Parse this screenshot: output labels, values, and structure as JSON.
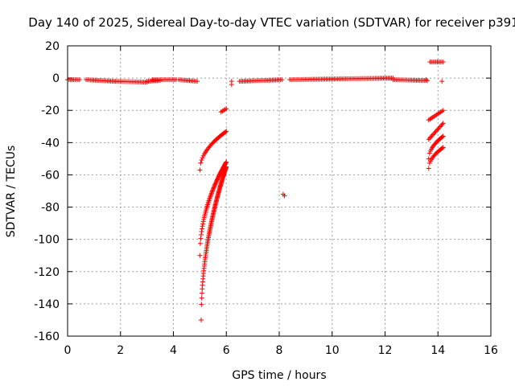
{
  "chart_data": {
    "type": "scatter",
    "title": "Day 140 of 2025, Sidereal Day-to-day VTEC variation (SDTVAR) for receiver p391",
    "xlabel": "GPS time / hours",
    "ylabel": "SDTVAR / TECUs",
    "xlim": [
      0,
      16
    ],
    "ylim": [
      -160,
      20
    ],
    "xticks": [
      0,
      2,
      4,
      6,
      8,
      10,
      12,
      14,
      16
    ],
    "yticks": [
      -160,
      -140,
      -120,
      -100,
      -80,
      -60,
      -40,
      -20,
      0,
      20
    ],
    "grid": true,
    "marker": "plus",
    "color": "#ff0000",
    "series": [
      {
        "name": "SDTVAR",
        "segments": [
          {
            "x0": 0.0,
            "x1": 0.45,
            "y0": -1,
            "y1": -1
          },
          {
            "x0": 0.7,
            "x1": 1.8,
            "y0": -1,
            "y1": -2
          },
          {
            "x0": 1.8,
            "x1": 3.0,
            "y0": -2,
            "y1": -2.5
          },
          {
            "x0": 3.0,
            "x1": 3.5,
            "y0": -2,
            "y1": -1.5
          },
          {
            "x0": 3.2,
            "x1": 4.1,
            "y0": -1,
            "y1": -1
          },
          {
            "x0": 4.2,
            "x1": 4.9,
            "y0": -1,
            "y1": -2
          },
          {
            "x0": 6.5,
            "x1": 8.1,
            "y0": -2,
            "y1": -1
          },
          {
            "x0": 8.4,
            "x1": 12.3,
            "y0": -1,
            "y1": 0
          },
          {
            "x0": 12.3,
            "x1": 13.6,
            "y0": -1,
            "y1": -1.5
          },
          {
            "x0": 13.7,
            "x1": 14.2,
            "y0": 10,
            "y1": 10
          },
          {
            "x0": 5.0,
            "x1": 6.0,
            "y0": -57,
            "y1": -33
          },
          {
            "x0": 5.0,
            "x1": 6.0,
            "y0": -110,
            "y1": -52
          },
          {
            "x0": 5.05,
            "x1": 6.0,
            "y0": -150,
            "y1": -55
          },
          {
            "x0": 5.8,
            "x1": 6.0,
            "y0": -21,
            "y1": -19
          },
          {
            "x0": 13.65,
            "x1": 14.2,
            "y0": -26,
            "y1": -20
          },
          {
            "x0": 13.65,
            "x1": 14.2,
            "y0": -38,
            "y1": -28
          },
          {
            "x0": 13.65,
            "x1": 14.2,
            "y0": -50,
            "y1": -36
          },
          {
            "x0": 13.65,
            "x1": 14.2,
            "y0": -56,
            "y1": -43
          }
        ],
        "points": [
          {
            "x": 6.2,
            "y": -2
          },
          {
            "x": 6.2,
            "y": -4
          },
          {
            "x": 8.15,
            "y": -72
          },
          {
            "x": 8.2,
            "y": -73
          },
          {
            "x": 14.15,
            "y": -2
          },
          {
            "x": 13.55,
            "y": -1
          }
        ]
      }
    ]
  }
}
